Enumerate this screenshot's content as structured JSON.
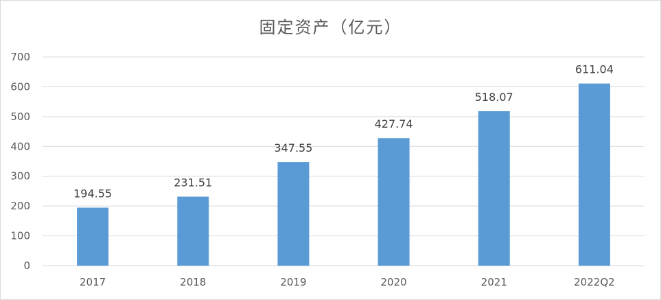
{
  "chart_data": {
    "type": "bar",
    "title": "固定资产（亿元）",
    "categories": [
      "2017",
      "2018",
      "2019",
      "2020",
      "2021",
      "2022Q2"
    ],
    "series": [
      {
        "values": [
          194.55,
          231.51,
          347.55,
          427.74,
          518.07,
          611.04
        ],
        "color": "#5b9bd5"
      }
    ],
    "data_labels": [
      "194.55",
      "231.51",
      "347.55",
      "427.74",
      "518.07",
      "611.04"
    ],
    "ylim": [
      0,
      700
    ],
    "y_ticks": [
      0,
      100,
      200,
      300,
      400,
      500,
      600,
      700
    ],
    "grid": true,
    "legend": "none",
    "xlabel": "",
    "ylabel": ""
  },
  "colors": {
    "bar": "#5b9bd5",
    "grid": "#d9d9d9",
    "text": "#595959"
  }
}
